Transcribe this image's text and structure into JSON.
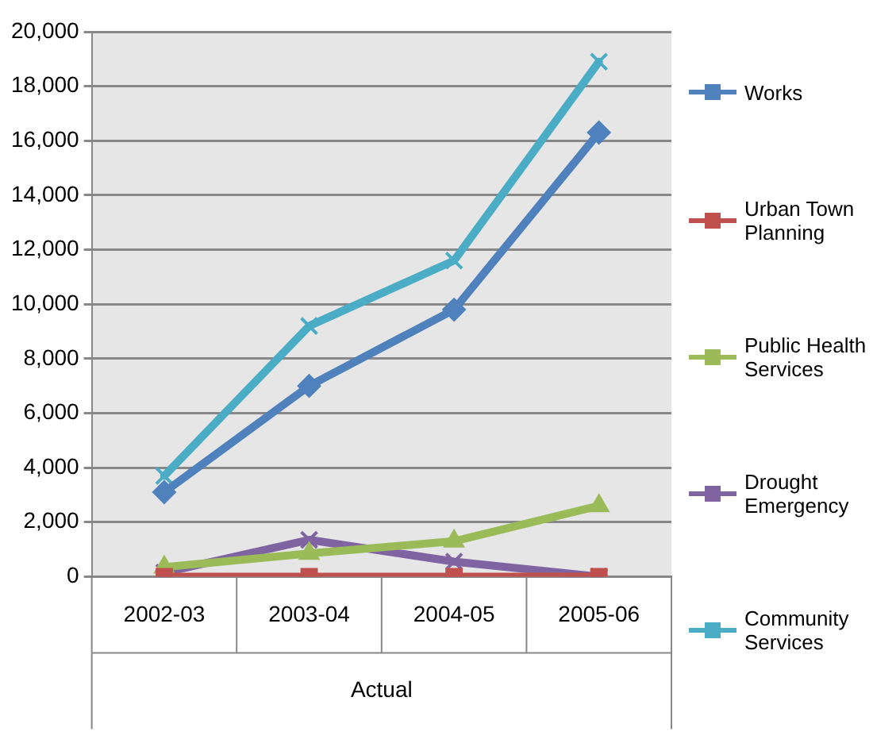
{
  "chart_data": {
    "type": "line",
    "categories": [
      "2002-03",
      "2003-04",
      "2004-05",
      "2005-06"
    ],
    "xlabel": "Actual",
    "ylim": [
      0,
      20000
    ],
    "yticks": [
      0,
      {
        "value": 2000,
        "label": "2,000"
      },
      {
        "value": 4000,
        "label": "4,000"
      },
      {
        "value": 6000,
        "label": "6,000"
      },
      {
        "value": 8000,
        "label": "8,000"
      },
      {
        "value": 10000,
        "label": "10,000"
      },
      {
        "value": 12000,
        "label": "12,000"
      },
      {
        "value": 14000,
        "label": "14,000"
      },
      {
        "value": 16000,
        "label": "16,000"
      },
      {
        "value": 18000,
        "label": "18,000"
      },
      {
        "value": 20000,
        "label": "20,000"
      }
    ],
    "grid": "y",
    "legend": "right",
    "series": [
      {
        "name": "Works",
        "color": "#4f81bd",
        "marker": "diamond",
        "values": [
          3100,
          7000,
          9800,
          16300
        ]
      },
      {
        "name": "Urban Town Planning",
        "color": "#c0504d",
        "marker": "square",
        "values": [
          0,
          0,
          0,
          0
        ]
      },
      {
        "name": "Public Health Services",
        "color": "#9bbb59",
        "marker": "triangle",
        "values": [
          350,
          850,
          1300,
          2600
        ]
      },
      {
        "name": "Drought Emergency",
        "color": "#8064a2",
        "marker": "cross",
        "values": [
          150,
          1350,
          550,
          0
        ]
      },
      {
        "name": "Community Services",
        "color": "#4bacc6",
        "marker": "cross",
        "values": [
          3700,
          9200,
          11600,
          18900
        ]
      }
    ]
  }
}
